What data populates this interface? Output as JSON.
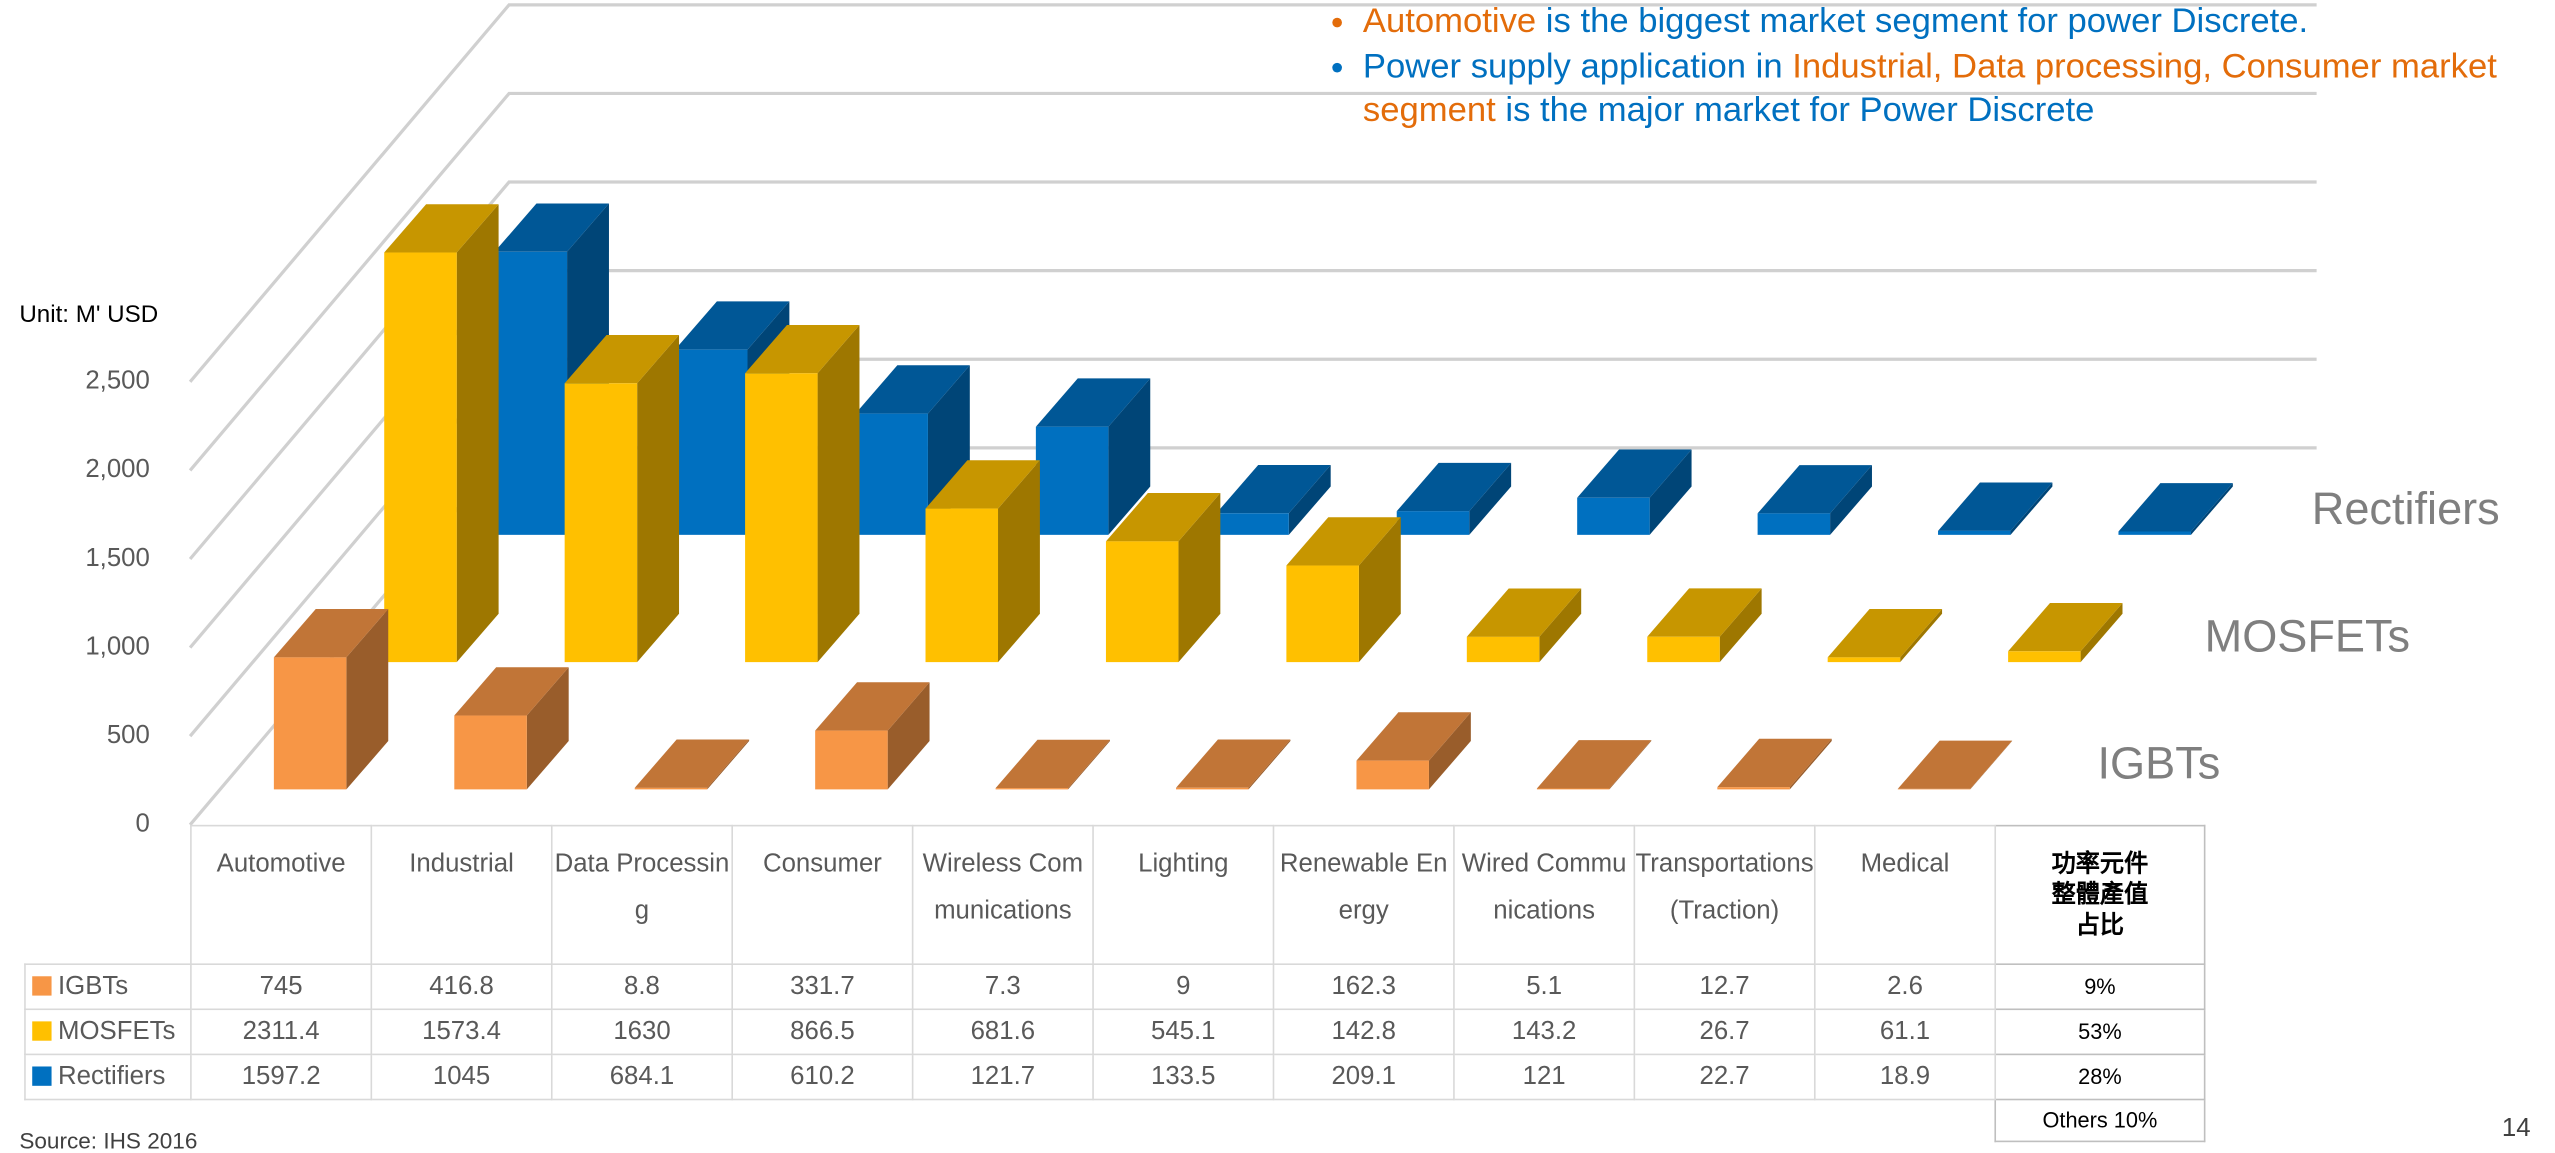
{
  "chart_data": {
    "type": "bar3d",
    "unit_label": "Unit: M' USD",
    "categories": [
      "Automotive",
      "Industrial",
      "Data Processing",
      "Consumer",
      "Wireless Communications",
      "Lighting",
      "Renewable Energy",
      "Wired Communications",
      "Transportations (Traction)",
      "Medical"
    ],
    "series": [
      {
        "name": "IGBTs",
        "color": "#F79646",
        "values": [
          745,
          416.8,
          8.8,
          331.7,
          7.3,
          9,
          162.3,
          5.1,
          12.7,
          2.6
        ]
      },
      {
        "name": "MOSFETs",
        "color": "#FFC000",
        "values": [
          2311.4,
          1573.4,
          1630,
          866.5,
          681.6,
          545.1,
          142.8,
          143.2,
          26.7,
          61.1
        ]
      },
      {
        "name": "Rectifiers",
        "color": "#0070C0",
        "values": [
          1597.2,
          1045,
          684.1,
          610.2,
          121.7,
          133.5,
          209.1,
          121,
          22.7,
          18.9
        ]
      }
    ],
    "ylim": [
      0,
      2500
    ],
    "yticks": [
      0,
      500,
      {
        "value": 1000,
        "label": "1,000"
      },
      {
        "value": 1500,
        "label": "1,500"
      },
      {
        "value": 2000,
        "label": "2,000"
      },
      {
        "value": 2500,
        "label": "2,500"
      }
    ],
    "grid": true
  },
  "share_table": {
    "title": "功率元件\n整體產值\n占比",
    "values": [
      9,
      53,
      28
    ],
    "value_labels": [
      "9%",
      "53%",
      "28%"
    ],
    "others": "Others 10%"
  },
  "bullets": [
    [
      {
        "text": "Automotive",
        "color": "#E36C0A"
      },
      {
        "text": " is the biggest market segment for power Discrete.",
        "color": "#0070C0"
      }
    ],
    [
      {
        "text": "Power supply application in ",
        "color": "#0070C0"
      },
      {
        "text": "Industrial, Data processing, Consumer market segment",
        "color": "#E36C0A"
      },
      {
        "text": " is the major market for Power Discrete",
        "color": "#0070C0"
      }
    ]
  ],
  "source": "Source: IHS 2016",
  "page_number": "14"
}
